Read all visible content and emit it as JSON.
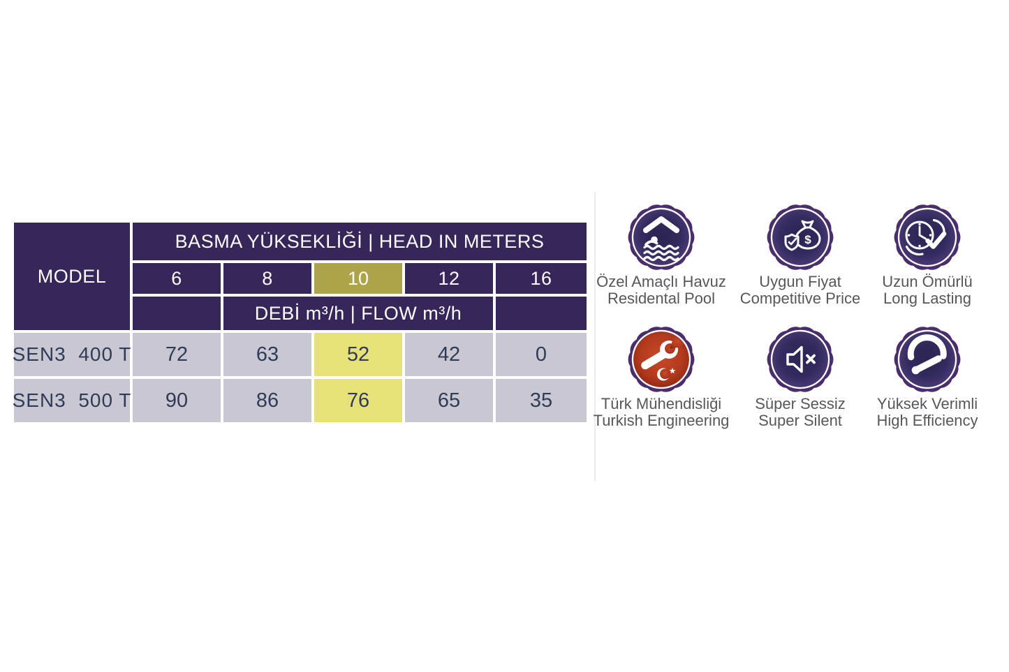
{
  "table": {
    "model_header": "MODEL",
    "head_header": "BASMA YÜKSEKLİĞİ | HEAD IN METERS",
    "flow_header": "DEBİ m³/h | FLOW m³/h",
    "columns": [
      "6",
      "8",
      "10",
      "12",
      "16"
    ],
    "highlight_column_index": 2,
    "rows": [
      {
        "model": "SEN3  400 T",
        "values": [
          "72",
          "63",
          "52",
          "42",
          "0"
        ]
      },
      {
        "model": "SEN3  500 T",
        "values": [
          "90",
          "86",
          "76",
          "65",
          "35"
        ]
      }
    ],
    "colors": {
      "header_bg": "#362659",
      "row_bg": "#c9c7d2",
      "highlight_header_bg": "#ada449",
      "highlight_cell_bg": "#e7e17a",
      "header_text": "#ffffff",
      "cell_text": "#2e3c58"
    }
  },
  "badges": [
    {
      "icon": "residential-pool-icon",
      "line1": "Özel Amaçlı Havuz",
      "line2": "Residental Pool"
    },
    {
      "icon": "competitive-price-icon",
      "line1": "Uygun Fiyat",
      "line2": "Competitive Price"
    },
    {
      "icon": "long-lasting-icon",
      "line1": "Uzun Ömürlü",
      "line2": "Long Lasting"
    },
    {
      "icon": "turkish-engineering-icon",
      "line1": "Türk Mühendisliği",
      "line2": "Turkish Engineering"
    },
    {
      "icon": "super-silent-icon",
      "line1": "Süper Sessiz",
      "line2": "Super Silent"
    },
    {
      "icon": "high-efficiency-icon",
      "line1": "Yüksek Verimli",
      "line2": "High Efficiency"
    }
  ]
}
